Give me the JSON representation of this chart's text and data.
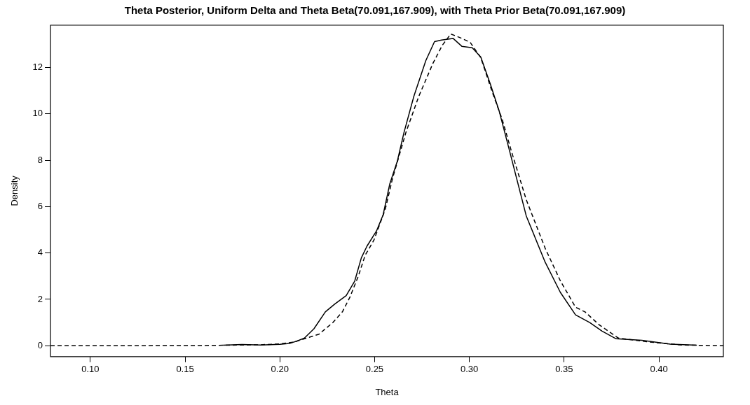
{
  "chart_data": {
    "type": "line",
    "title": "Theta Posterior, Uniform Delta and Theta Beta(70.091,167.909), with Theta Prior Beta(70.091,167.909)",
    "xlabel": "Theta",
    "ylabel": "Density",
    "xlim": [
      0.079,
      0.434
    ],
    "xticks": [
      {
        "value": 0.1,
        "label": "0.10"
      },
      0.15,
      {
        "value": 0.2,
        "label": "0.20"
      },
      0.25,
      {
        "value": 0.3,
        "label": "0.30"
      },
      0.35,
      {
        "value": 0.4,
        "label": "0.40"
      }
    ],
    "ylim": [
      -0.47,
      13.83
    ],
    "yticks": [
      0,
      2,
      4,
      6,
      8,
      10,
      12
    ],
    "grid": false,
    "legend": false,
    "marker": "none",
    "series": [
      {
        "color": "#000000",
        "line_style": "solid",
        "x": [
          0.17,
          0.18,
          0.19,
          0.2,
          0.205,
          0.209,
          0.213,
          0.218,
          0.224,
          0.229,
          0.235,
          0.2395,
          0.243,
          0.246,
          0.251,
          0.2545,
          0.258,
          0.262,
          0.2655,
          0.2707,
          0.277,
          0.2816,
          0.2853,
          0.2914,
          0.296,
          0.3015,
          0.306,
          0.311,
          0.3158,
          0.321,
          0.33,
          0.34,
          0.348,
          0.356,
          0.3635,
          0.37,
          0.3774,
          0.391,
          0.406,
          0.42
        ],
        "values": [
          0.02,
          0.05,
          0.03,
          0.06,
          0.1,
          0.2,
          0.33,
          0.73,
          1.46,
          1.8,
          2.16,
          2.79,
          3.79,
          4.3,
          4.95,
          5.65,
          6.98,
          7.97,
          9.2,
          10.76,
          12.3,
          13.12,
          13.19,
          13.26,
          12.92,
          12.86,
          12.46,
          11.3,
          10.1,
          8.47,
          5.6,
          3.6,
          2.3,
          1.33,
          1.0,
          0.63,
          0.3,
          0.23,
          0.07,
          0.02
        ]
      },
      {
        "color": "#000000",
        "line_style": "dashed",
        "x": [
          0.079,
          0.12,
          0.16,
          0.19,
          0.2,
          0.207,
          0.213,
          0.2207,
          0.228,
          0.233,
          0.237,
          0.2414,
          0.245,
          0.2496,
          0.2556,
          0.2594,
          0.2665,
          0.2733,
          0.2808,
          0.2857,
          0.2902,
          0.296,
          0.3004,
          0.306,
          0.312,
          0.3173,
          0.322,
          0.33,
          0.34,
          0.348,
          0.356,
          0.361,
          0.3685,
          0.3786,
          0.3936,
          0.412,
          0.434
        ],
        "values": [
          0,
          0,
          0.01,
          0.04,
          0.08,
          0.15,
          0.3,
          0.5,
          1.0,
          1.46,
          2.1,
          3.0,
          3.9,
          4.55,
          5.88,
          7.2,
          9.2,
          10.76,
          12.19,
          12.96,
          13.45,
          13.26,
          13.09,
          12.43,
          10.96,
          9.77,
          8.44,
          6.3,
          4.2,
          2.8,
          1.66,
          1.46,
          0.9,
          0.33,
          0.17,
          0.03,
          0
        ]
      }
    ]
  }
}
